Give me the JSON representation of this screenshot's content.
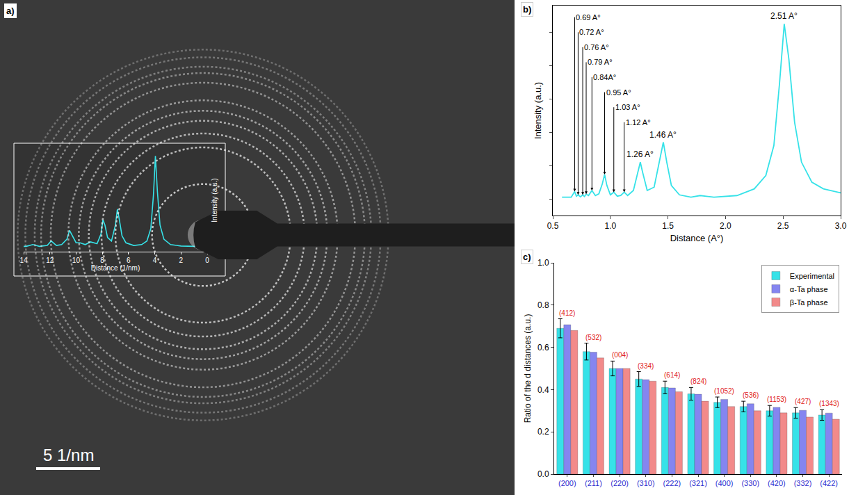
{
  "chart_data": [
    {
      "panel": "a)",
      "type": "line",
      "x_label": "Distance (1/nm)",
      "y_label": "Intensity (a.u.)",
      "x": [
        0.9,
        2.0,
        2.8,
        3.3,
        3.6,
        3.8,
        3.95,
        4.1,
        4.3,
        4.6,
        5.0,
        5.6,
        6.2,
        6.5,
        6.7,
        6.85,
        7.0,
        7.3,
        7.6,
        7.8,
        7.95,
        8.1,
        8.4,
        8.9,
        9.3,
        9.7,
        10.0,
        10.3,
        10.5,
        10.7,
        11.1,
        11.5,
        11.9,
        12.2,
        12.8,
        13.3,
        13.8,
        14.0
      ],
      "values": [
        0.1,
        0.12,
        0.2,
        0.5,
        1.3,
        3.2,
        5.2,
        3.0,
        1.1,
        0.4,
        0.2,
        0.15,
        0.3,
        0.7,
        1.6,
        2.2,
        1.3,
        0.4,
        0.6,
        1.3,
        1.6,
        0.8,
        0.25,
        0.35,
        0.2,
        0.3,
        0.3,
        0.7,
        1.0,
        0.5,
        0.2,
        0.15,
        0.4,
        0.15,
        0.1,
        0.2,
        0.1,
        0.1
      ],
      "color": "#36e2e8",
      "xlim": [
        14,
        0
      ],
      "xticks": [
        14,
        12,
        10,
        8,
        6,
        4,
        2,
        0
      ],
      "ylim": [
        -0.2,
        5.6
      ],
      "yticks": [],
      "tick_labels": "x",
      "scale_bar": {
        "value": 5,
        "label": "5 1/nm"
      }
    },
    {
      "panel": "b)",
      "type": "line",
      "x_label": "Distance (A°)",
      "y_label": "Intensity (a.u.)",
      "x": [
        0.58,
        0.66,
        0.69,
        0.705,
        0.72,
        0.74,
        0.76,
        0.775,
        0.79,
        0.81,
        0.84,
        0.87,
        0.9,
        0.93,
        0.95,
        0.97,
        1.0,
        1.03,
        1.06,
        1.09,
        1.12,
        1.15,
        1.2,
        1.24,
        1.26,
        1.28,
        1.32,
        1.38,
        1.42,
        1.46,
        1.49,
        1.53,
        1.6,
        1.7,
        1.78,
        1.9,
        2.1,
        2.25,
        2.35,
        2.42,
        2.47,
        2.51,
        2.55,
        2.6,
        2.66,
        2.75,
        2.85,
        3.0
      ],
      "values": [
        0.05,
        0.05,
        0.22,
        0.08,
        0.12,
        0.06,
        0.12,
        0.07,
        0.14,
        0.1,
        0.25,
        0.1,
        0.15,
        0.45,
        0.73,
        0.4,
        0.12,
        0.2,
        0.08,
        0.1,
        0.2,
        0.1,
        0.25,
        0.8,
        1.1,
        0.8,
        0.25,
        0.35,
        1.0,
        1.7,
        1.1,
        0.4,
        0.12,
        0.05,
        0.1,
        0.05,
        0.1,
        0.3,
        0.7,
        1.6,
        3.5,
        5.25,
        4.2,
        2.3,
        1.1,
        0.5,
        0.3,
        0.18
      ],
      "color": "#36e2e8",
      "xlim": [
        0.5,
        3.0
      ],
      "xticks": [
        0.5,
        {
          "value": 1,
          "label": "1.0"
        },
        1.5,
        {
          "value": 2,
          "label": "2.0"
        },
        2.5,
        {
          "value": 3,
          "label": "3.0"
        }
      ],
      "ylim": [
        -0.5,
        5.8
      ],
      "yticks": [
        0,
        1,
        2,
        3,
        4,
        5
      ],
      "tick_labels": "x",
      "annotations": [
        {
          "text": "2.51 A°",
          "x": 2.51,
          "y": 5.25
        },
        {
          "text": "1.46 A°",
          "x": 1.46,
          "y": 1.7
        },
        {
          "text": "1.26 A°",
          "x": 1.26,
          "y": 1.1
        },
        {
          "text": "1.12 A°",
          "x": 1.12,
          "y": 0.2
        },
        {
          "text": "1.03 A°",
          "x": 1.03,
          "y": 0.2
        },
        {
          "text": "0.95 A°",
          "x": 0.95,
          "y": 0.73
        },
        {
          "text": "0.84A°",
          "x": 0.84,
          "y": 0.25
        },
        {
          "text": "0.79 A°",
          "x": 0.79,
          "y": 0.14
        },
        {
          "text": "0.76 A°",
          "x": 0.76,
          "y": 0.12
        },
        {
          "text": "0.72 A°",
          "x": 0.72,
          "y": 0.12
        },
        {
          "text": "0.69 A°",
          "x": 0.69,
          "y": 0.22
        }
      ]
    },
    {
      "panel": "c)",
      "type": "bar",
      "y_label": "Ratio of the d distances (a.u.)",
      "categories": [
        "(200)",
        "(211)",
        "(220)",
        "(310)",
        "(222)",
        "(321)",
        "(400)",
        "(330)",
        "(420)",
        "(332)",
        "(422)"
      ],
      "series": [
        {
          "name": "Experimental",
          "color": "#36e2e8",
          "values": [
            0.69,
            0.58,
            0.5,
            0.45,
            0.41,
            0.38,
            0.34,
            0.32,
            0.3,
            0.29,
            0.28
          ],
          "error": [
            0.045,
            0.04,
            0.035,
            0.035,
            0.03,
            0.03,
            0.025,
            0.025,
            0.025,
            0.025,
            0.025
          ]
        },
        {
          "name": "α-Ta phase",
          "color": "#8585f0",
          "values": [
            0.707,
            0.577,
            0.5,
            0.447,
            0.408,
            0.378,
            0.354,
            0.333,
            0.316,
            0.302,
            0.289
          ]
        },
        {
          "name": "β-Ta phase",
          "color": "#f28a8a",
          "values": [
            0.68,
            0.55,
            0.5,
            0.44,
            0.39,
            0.345,
            0.32,
            0.3,
            0.29,
            0.27,
            0.26
          ]
        }
      ],
      "ylim": [
        0,
        1
      ],
      "yticks": [
        {
          "value": 0,
          "label": "0.0"
        },
        0.2,
        0.4,
        0.6,
        0.8,
        {
          "value": 1,
          "label": "1.0"
        }
      ],
      "legend": "top right",
      "annotations": [
        {
          "text": "(412)",
          "x": 0
        },
        {
          "text": "(532)",
          "x": 1
        },
        {
          "text": "(004)",
          "x": 2
        },
        {
          "text": "(334)",
          "x": 3
        },
        {
          "text": "(614)",
          "x": 4
        },
        {
          "text": "(824)",
          "x": 5
        },
        {
          "text": "(1052)",
          "x": 6
        },
        {
          "text": "(536)",
          "x": 7
        },
        {
          "text": "(1153)",
          "x": 8
        },
        {
          "text": "(427)",
          "x": 9
        },
        {
          "text": "(1343)",
          "x": 10
        }
      ]
    }
  ]
}
